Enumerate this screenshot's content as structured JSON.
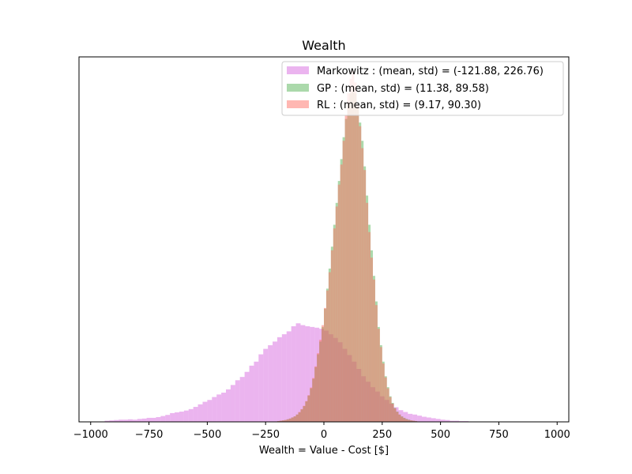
{
  "chart_data": {
    "type": "histogram",
    "title": "Wealth",
    "xlabel": "Wealth = Value - Cost [$]",
    "ylabel": "",
    "xlim": [
      -1050,
      1050
    ],
    "ylim": [
      0,
      1000
    ],
    "xticks": [
      -1000,
      -750,
      -500,
      -250,
      0,
      250,
      500,
      750,
      1000
    ],
    "xtick_labels": [
      "−1000",
      "−750",
      "−500",
      "−250",
      "0",
      "250",
      "500",
      "750",
      "1000"
    ],
    "yticks_visible": false,
    "grid": false,
    "legend_position": "top-right",
    "series": [
      {
        "name": "Markowitz",
        "label": "Markowitz : (mean, std) = (-121.88, 226.76)",
        "color": "#d869df",
        "alpha": 0.5,
        "mean": -121.88,
        "std": 226.76,
        "bin_start": -1000,
        "bin_width": 20,
        "counts": [
          0,
          0,
          0,
          3,
          4,
          5,
          6,
          6,
          7,
          6,
          8,
          9,
          11,
          11,
          13,
          16,
          19,
          24,
          26,
          28,
          31,
          35,
          41,
          48,
          55,
          60,
          68,
          75,
          80,
          89,
          101,
          114,
          123,
          137,
          154,
          165,
          185,
          200,
          210,
          220,
          232,
          240,
          248,
          262,
          270,
          265,
          262,
          260,
          258,
          255,
          250,
          240,
          230,
          218,
          200,
          183,
          165,
          145,
          125,
          110,
          95,
          83,
          70,
          60,
          50,
          40,
          32,
          27,
          22,
          20,
          17,
          14,
          12,
          10,
          8,
          6,
          5,
          3,
          3,
          2,
          2,
          1,
          1,
          1,
          1,
          1,
          0,
          0,
          0,
          0,
          0,
          0,
          0,
          0,
          0,
          0,
          0,
          0,
          0,
          0
        ]
      },
      {
        "name": "GP",
        "label": "GP : (mean, std) = (11.38, 89.58)",
        "color": "#2ca02c",
        "alpha": 0.4,
        "mean": 11.38,
        "std": 89.58,
        "bin_start": -200,
        "bin_width": 10,
        "counts": [
          2,
          3,
          4,
          5,
          7,
          9,
          12,
          15,
          20,
          26,
          34,
          43,
          56,
          72,
          92,
          118,
          150,
          185,
          220,
          260,
          310,
          365,
          420,
          480,
          540,
          600,
          660,
          720,
          780,
          830,
          870,
          900,
          915,
          900,
          860,
          820,
          770,
          700,
          620,
          540,
          470,
          400,
          330,
          260,
          210,
          165,
          125,
          95,
          70,
          52,
          38,
          28,
          20,
          15,
          11,
          8,
          6,
          4,
          3,
          2,
          1
        ]
      },
      {
        "name": "RL",
        "label": "RL : (mean, std) = (9.17, 90.30)",
        "color": "#ff6f65",
        "alpha": 0.5,
        "mean": 9.17,
        "std": 90.3,
        "bin_start": -200,
        "bin_width": 10,
        "counts": [
          2,
          3,
          4,
          5,
          7,
          9,
          12,
          15,
          20,
          27,
          35,
          44,
          57,
          73,
          94,
          120,
          152,
          188,
          225,
          265,
          312,
          360,
          410,
          470,
          530,
          590,
          650,
          705,
          770,
          840,
          900,
          940,
          960,
          930,
          870,
          810,
          750,
          690,
          600,
          520,
          450,
          390,
          320,
          255,
          205,
          160,
          122,
          92,
          68,
          50,
          37,
          27,
          20,
          14,
          10,
          7,
          5,
          4,
          3,
          2,
          1
        ]
      }
    ]
  }
}
